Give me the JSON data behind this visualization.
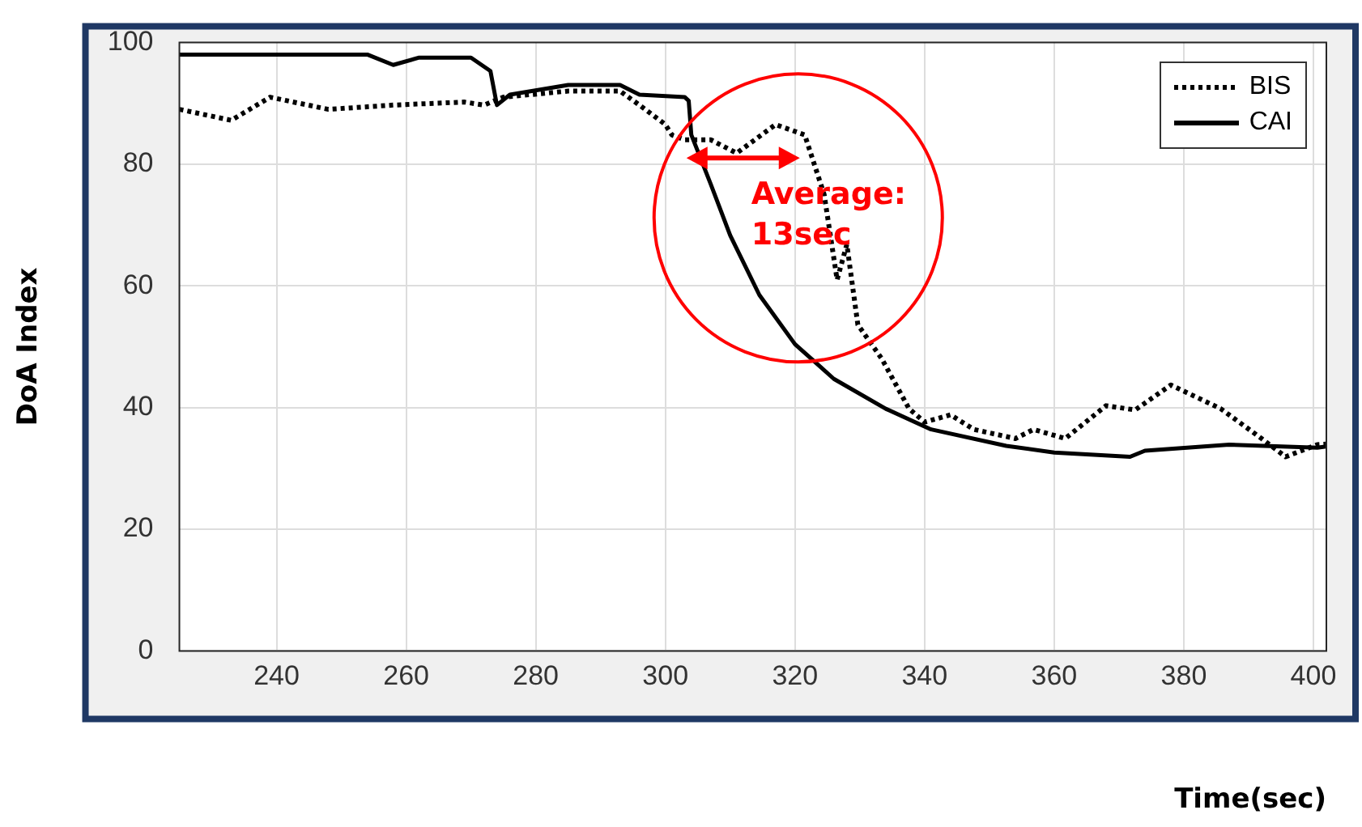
{
  "chart_data": {
    "type": "line",
    "xlabel": "Time(sec)",
    "ylabel": "DoA Index",
    "xlim": [
      225,
      402
    ],
    "xticks": [
      240,
      260,
      280,
      300,
      320,
      340,
      360,
      380,
      400
    ],
    "ylim": [
      0,
      100
    ],
    "yticks": [
      0,
      20,
      40,
      60,
      80,
      100
    ],
    "grid": true,
    "legend": "top right",
    "marker": "none",
    "annotations": [
      {
        "text": "Average:\n13sec",
        "x": 312,
        "y": 81
      }
    ],
    "series": [
      {
        "name": "BIS",
        "color": "#000000",
        "line_style": "dotted",
        "x": [
          225,
          233,
          239,
          248,
          258,
          269,
          272,
          275,
          285,
          293,
          296,
          300,
          301,
          303,
          307,
          311,
          317,
          321.5,
          324.5,
          326.5,
          328,
          329.7,
          333.4,
          337.6,
          340,
          344,
          347.6,
          354,
          356.8,
          361.7,
          368,
          372.5,
          378,
          385.7,
          392,
          395.7,
          400.6,
          402
        ],
        "values": [
          89,
          87.2,
          91,
          89,
          89.7,
          90.2,
          89.7,
          91,
          92,
          92,
          89.7,
          86.5,
          84.8,
          84,
          84,
          81.8,
          86.5,
          84.8,
          75,
          61,
          66.8,
          53.6,
          48,
          39.8,
          37.6,
          38.8,
          36.4,
          34.9,
          36.4,
          34.9,
          40.3,
          39.6,
          43.7,
          39.8,
          34.9,
          31.9,
          33.9,
          34
        ]
      },
      {
        "name": "CAI",
        "color": "#000000",
        "line_style": "solid",
        "x": [
          225,
          254,
          258,
          262,
          270,
          273,
          274,
          276,
          285,
          293,
          296,
          303,
          303.6,
          304,
          307,
          310,
          314.5,
          320,
          326,
          334,
          341,
          352.6,
          360,
          371.7,
          374,
          387,
          400.6,
          402
        ],
        "values": [
          98,
          98,
          96.3,
          97.5,
          97.5,
          95.3,
          89.7,
          91.4,
          93,
          93,
          91.4,
          91,
          90.4,
          84.8,
          76.7,
          68.3,
          58.5,
          50.4,
          44.7,
          39.8,
          36.4,
          33.7,
          32.6,
          31.9,
          32.9,
          33.9,
          33.4,
          33.6
        ]
      }
    ]
  }
}
